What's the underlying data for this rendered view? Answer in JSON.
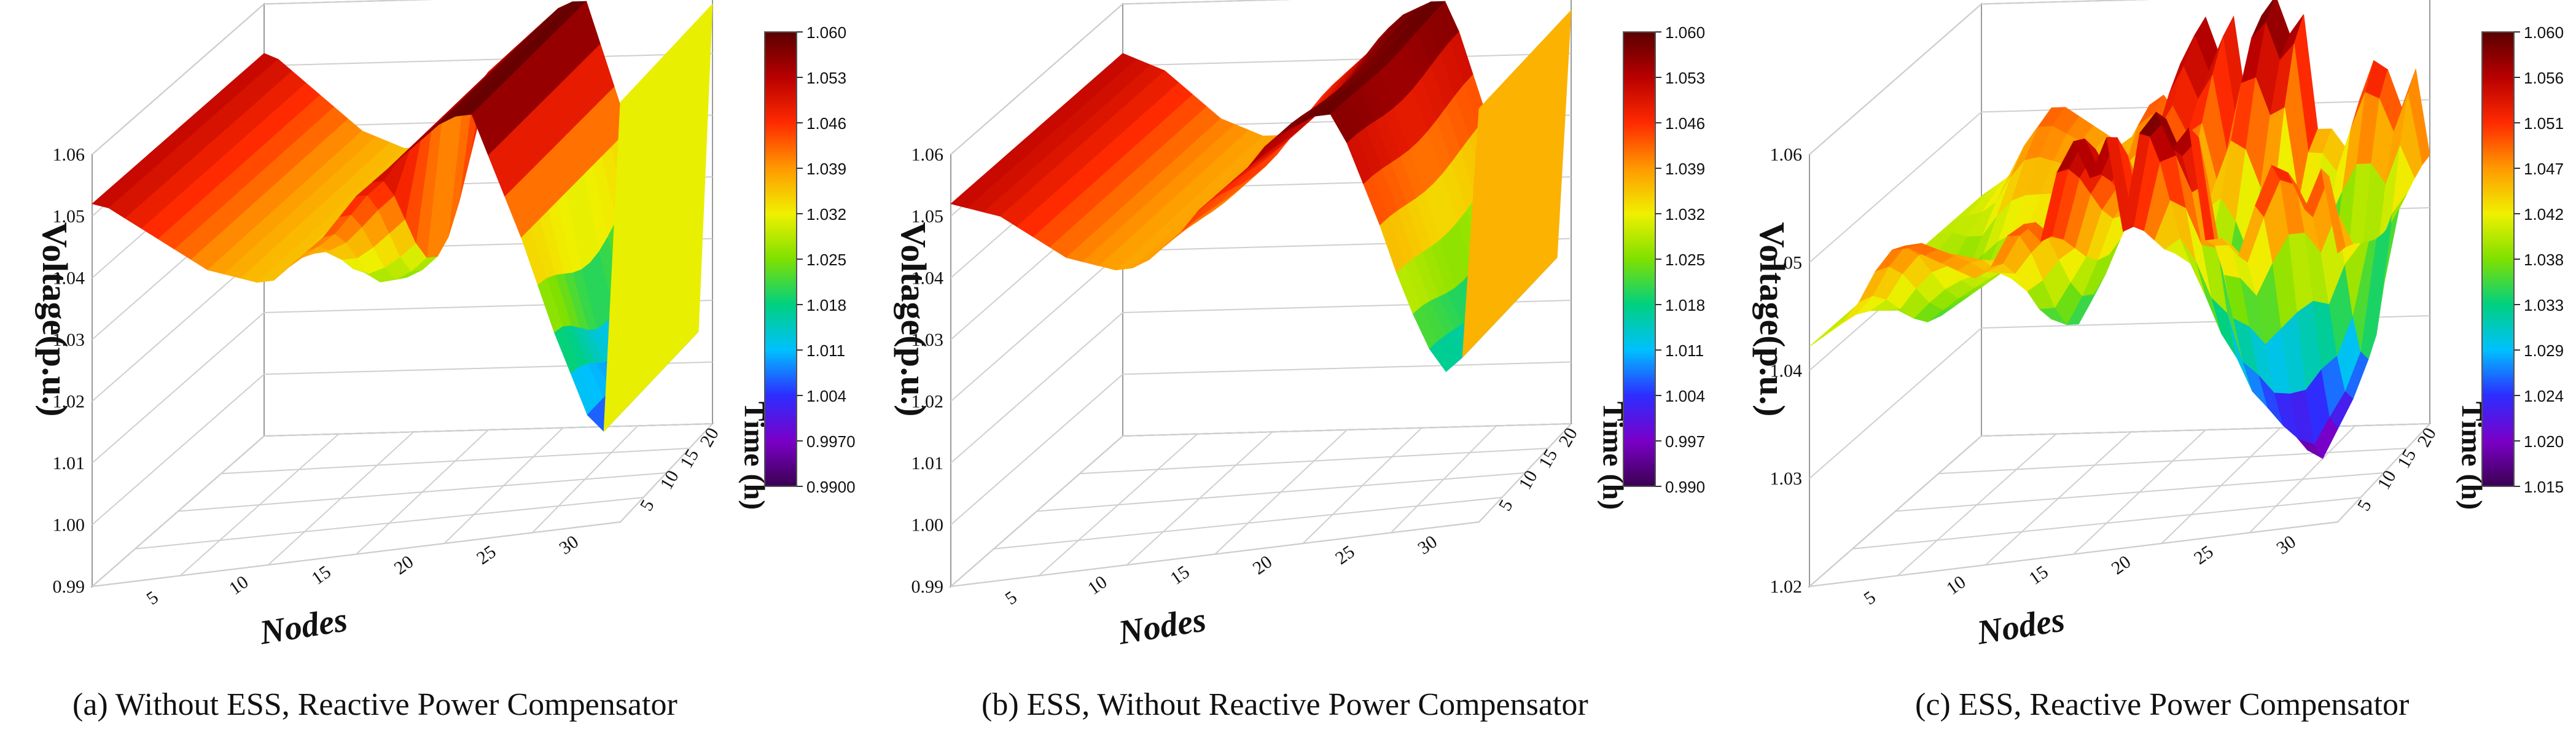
{
  "panels": [
    {
      "caption": "(a) Without ESS, Reactive Power Compensator",
      "zlabel": "Voltage(p.u.)",
      "xlabel": "Nodes",
      "ylabel": "Time (h)",
      "zticks": [
        "0.99",
        "1.00",
        "1.01",
        "1.02",
        "1.03",
        "1.04",
        "1.05",
        "1.06"
      ],
      "xticks": [
        "5",
        "10",
        "15",
        "20",
        "25",
        "30"
      ],
      "yticks": [
        "5",
        "10",
        "15",
        "20"
      ],
      "colorbar_ticks": [
        "1.060",
        "1.053",
        "1.046",
        "1.039",
        "1.032",
        "1.025",
        "1.018",
        "1.011",
        "1.004",
        "0.9970",
        "0.9900"
      ]
    },
    {
      "caption": "(b) ESS, Without Reactive Power Compensator",
      "zlabel": "Voltage(p.u.)",
      "xlabel": "Nodes",
      "ylabel": "Time (h)",
      "zticks": [
        "0.99",
        "1.00",
        "1.01",
        "1.02",
        "1.03",
        "1.04",
        "1.05",
        "1.06"
      ],
      "xticks": [
        "5",
        "10",
        "15",
        "20",
        "25",
        "30"
      ],
      "yticks": [
        "5",
        "10",
        "15",
        "20"
      ],
      "colorbar_ticks": [
        "1.060",
        "1.053",
        "1.046",
        "1.039",
        "1.032",
        "1.025",
        "1.018",
        "1.011",
        "1.004",
        "0.997",
        "0.990"
      ]
    },
    {
      "caption": "(c) ESS, Reactive Power Compensator",
      "zlabel": "Voltage(p.u.)",
      "xlabel": "Nodes",
      "ylabel": "Time (h)",
      "zticks": [
        "1.02",
        "1.03",
        "1.04",
        "1.05",
        "1.06"
      ],
      "xticks": [
        "5",
        "10",
        "15",
        "20",
        "25",
        "30"
      ],
      "yticks": [
        "5",
        "10",
        "15",
        "20"
      ],
      "colorbar_ticks": [
        "1.060",
        "1.056",
        "1.051",
        "1.047",
        "1.042",
        "1.038",
        "1.033",
        "1.029",
        "1.024",
        "1.020",
        "1.015"
      ]
    }
  ],
  "chart_data": [
    {
      "type": "surface",
      "caption": "(a) Without ESS, Reactive Power Compensator",
      "zlabel": "Voltage(p.u.)",
      "xlabel": "Nodes",
      "ylabel": "Time (h)",
      "zlim": [
        0.99,
        1.06
      ],
      "xlim": [
        1,
        33
      ],
      "ylim": [
        1,
        24
      ],
      "colorbar": {
        "min": 0.99,
        "max": 1.06
      },
      "colormap": [
        "#3a0050",
        "#7a00c8",
        "#2d2dff",
        "#00c0ff",
        "#00d080",
        "#7fe000",
        "#f0f000",
        "#ff9900",
        "#ff2a00",
        "#b80000",
        "#5a0000"
      ],
      "nodes": [
        1,
        2,
        3,
        4,
        5,
        6,
        7,
        8,
        9,
        10,
        11,
        12,
        13,
        14,
        15,
        16,
        17,
        18,
        19,
        20,
        21,
        22,
        23,
        24,
        25,
        26,
        27,
        28,
        29,
        30,
        31,
        32,
        33
      ],
      "voltage_at_peak_time": [
        1.052,
        1.051,
        1.049,
        1.047,
        1.045,
        1.043,
        1.041,
        1.039,
        1.038,
        1.037,
        1.036,
        1.036,
        1.038,
        1.04,
        1.042,
        1.045,
        1.048,
        1.05,
        1.052,
        1.054,
        1.056,
        1.058,
        1.059,
        1.059,
        1.052,
        1.045,
        1.038,
        1.03,
        1.022,
        1.015,
        1.008,
        1.005,
        1.058
      ],
      "voltage_at_low_time": [
        1.052,
        1.051,
        1.049,
        1.047,
        1.045,
        1.043,
        1.041,
        1.039,
        1.038,
        1.037,
        1.036,
        1.036,
        1.032,
        1.027,
        1.025,
        1.025,
        1.026,
        1.028,
        1.052,
        1.054,
        1.056,
        1.058,
        1.059,
        1.059,
        1.052,
        1.045,
        1.038,
        1.025,
        1.015,
        1.01,
        1.008,
        1.005,
        1.058
      ]
    },
    {
      "type": "surface",
      "caption": "(b) ESS, Without Reactive Power Compensator",
      "zlabel": "Voltage(p.u.)",
      "xlabel": "Nodes",
      "ylabel": "Time (h)",
      "zlim": [
        0.99,
        1.06
      ],
      "xlim": [
        1,
        33
      ],
      "ylim": [
        1,
        24
      ],
      "colorbar": {
        "min": 0.99,
        "max": 1.06
      },
      "colormap": [
        "#3a0050",
        "#7a00c8",
        "#2d2dff",
        "#00c0ff",
        "#00d080",
        "#7fe000",
        "#f0f000",
        "#ff9900",
        "#ff2a00",
        "#b80000",
        "#5a0000"
      ],
      "nodes": [
        1,
        2,
        3,
        4,
        5,
        6,
        7,
        8,
        9,
        10,
        11,
        12,
        13,
        14,
        15,
        16,
        17,
        18,
        19,
        20,
        21,
        22,
        23,
        24,
        25,
        26,
        27,
        28,
        29,
        30,
        31,
        32,
        33
      ],
      "voltage_at_peak_time": [
        1.052,
        1.051,
        1.05,
        1.049,
        1.047,
        1.045,
        1.043,
        1.041,
        1.04,
        1.039,
        1.038,
        1.038,
        1.039,
        1.041,
        1.043,
        1.046,
        1.048,
        1.05,
        1.052,
        1.055,
        1.057,
        1.058,
        1.059,
        1.059,
        1.054,
        1.047,
        1.04,
        1.032,
        1.025,
        1.019,
        1.015,
        1.017,
        1.057
      ],
      "voltage_at_low_time": [
        1.052,
        1.051,
        1.05,
        1.049,
        1.047,
        1.045,
        1.043,
        1.041,
        1.04,
        1.039,
        1.038,
        1.038,
        1.038,
        1.039,
        1.041,
        1.043,
        1.046,
        1.048,
        1.05,
        1.052,
        1.055,
        1.057,
        1.058,
        1.058,
        1.052,
        1.045,
        1.038,
        1.03,
        1.022,
        1.017,
        1.015,
        1.017,
        1.057
      ]
    },
    {
      "type": "surface",
      "caption": "(c) ESS, Reactive Power Compensator",
      "zlabel": "Voltage(p.u.)",
      "xlabel": "Nodes",
      "ylabel": "Time (h)",
      "zlim": [
        1.015,
        1.06
      ],
      "xlim": [
        1,
        33
      ],
      "ylim": [
        1,
        24
      ],
      "colorbar": {
        "min": 1.015,
        "max": 1.06
      },
      "colormap": [
        "#3a0050",
        "#7a00c8",
        "#2d2dff",
        "#00c0ff",
        "#00d080",
        "#7fe000",
        "#f0f000",
        "#ff9900",
        "#ff2a00",
        "#b80000",
        "#5a0000"
      ],
      "nodes": [
        1,
        2,
        3,
        4,
        5,
        6,
        7,
        8,
        9,
        10,
        11,
        12,
        13,
        14,
        15,
        16,
        17,
        18,
        19,
        20,
        21,
        22,
        23,
        24,
        25,
        26,
        27,
        28,
        29,
        30,
        31,
        32,
        33
      ],
      "voltage_at_peak_time": [
        1.04,
        1.041,
        1.042,
        1.044,
        1.047,
        1.049,
        1.049,
        1.048,
        1.047,
        1.046,
        1.045,
        1.046,
        1.049,
        1.05,
        1.048,
        1.055,
        1.058,
        1.054,
        1.058,
        1.048,
        1.058,
        1.06,
        1.056,
        1.058,
        1.046,
        1.046,
        1.044,
        1.049,
        1.053,
        1.052,
        1.048,
        1.052,
        1.043
      ],
      "voltage_at_low_time": [
        1.04,
        1.039,
        1.037,
        1.035,
        1.036,
        1.037,
        1.038,
        1.039,
        1.04,
        1.041,
        1.038,
        1.034,
        1.033,
        1.036,
        1.04,
        1.044,
        1.046,
        1.044,
        1.042,
        1.04,
        1.038,
        1.034,
        1.03,
        1.027,
        1.024,
        1.022,
        1.02,
        1.018,
        1.017,
        1.02,
        1.023,
        1.027,
        1.04
      ]
    }
  ]
}
